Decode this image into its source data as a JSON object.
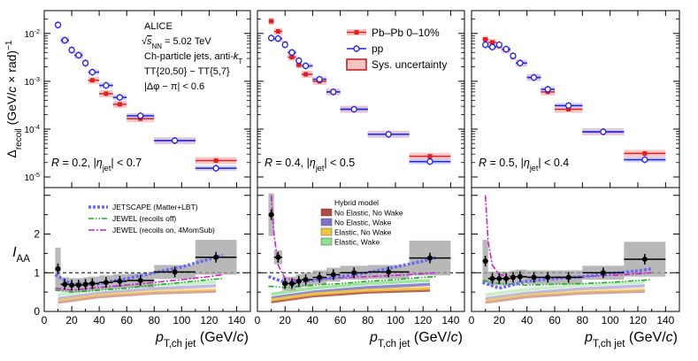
{
  "chart_data": [
    {
      "type": "scatter",
      "panel": "R=0.2 spectrum",
      "ylabel": "Δrecoil (GeV/c × rad)^-1",
      "yscale": "log",
      "ylim": [
        6e-06,
        0.03
      ],
      "xlim": [
        0,
        150
      ],
      "text": {
        "alice": "ALICE",
        "energy_pre": "√",
        "energy_s": "s",
        "energy_nn": "NN",
        "energy_post": " = 5.02 TeV",
        "jets_pre": "Ch-particle jets, anti-",
        "jets_k": "k",
        "jets_t": "T",
        "tt": "TT{20,50} − TT{5,7}",
        "dphi": "|Δφ − π| < 0.6",
        "r_label": "R = 0.2, |η",
        "r_sub": "jet",
        "r_post": "| < 0.7"
      },
      "series": [
        {
          "name": "Pb–Pb 0–10%",
          "x": [
            10,
            15,
            20,
            25,
            30,
            35,
            45,
            55,
            70,
            95,
            125
          ],
          "y": [
            0.015,
            0.0072,
            0.0045,
            0.0035,
            0.0024,
            0.00105,
            0.00055,
            0.00033,
            0.000165,
            5.75e-05,
            2.2e-05
          ]
        },
        {
          "name": "pp",
          "x": [
            10,
            15,
            20,
            25,
            30,
            35,
            45,
            55,
            70,
            95,
            125
          ],
          "y": [
            0.015,
            0.0072,
            0.0045,
            0.0035,
            0.0024,
            0.00155,
            0.00082,
            0.00046,
            0.00019,
            5.75e-05,
            1.52e-05
          ]
        }
      ]
    },
    {
      "type": "scatter",
      "panel": "R=0.4 spectrum",
      "yscale": "log",
      "text": {
        "r_label": "R = 0.4, |η",
        "r_sub": "jet",
        "r_post": "| < 0.5"
      },
      "series": [
        {
          "name": "Pb–Pb 0–10%",
          "x": [
            10,
            15,
            20,
            25,
            30,
            35,
            45,
            55,
            70,
            95,
            125
          ],
          "y": [
            0.018,
            0.011,
            0.006,
            0.0032,
            0.0022,
            0.0014,
            0.001,
            0.0006,
            0.00026,
            7.8e-05,
            2.7e-05
          ]
        },
        {
          "name": "pp",
          "x": [
            10,
            15,
            20,
            25,
            30,
            35,
            45,
            55,
            70,
            95,
            125
          ],
          "y": [
            0.008,
            0.0078,
            0.0058,
            0.004,
            0.0027,
            0.0021,
            0.0011,
            0.0006,
            0.00026,
            7.8e-05,
            2.1e-05
          ]
        }
      ]
    },
    {
      "type": "scatter",
      "panel": "R=0.5 spectrum",
      "yscale": "log",
      "text": {
        "r_label": "R = 0.5, |η",
        "r_sub": "jet",
        "r_post": "| < 0.4"
      },
      "series": [
        {
          "name": "Pb–Pb 0–10%",
          "x": [
            10,
            15,
            20,
            25,
            30,
            35,
            45,
            55,
            70,
            95,
            125
          ],
          "y": [
            0.0075,
            0.0065,
            0.0055,
            0.0045,
            0.0033,
            0.0024,
            0.0012,
            0.0006,
            0.00026,
            8.8e-05,
            3.1e-05
          ]
        },
        {
          "name": "pp",
          "x": [
            10,
            15,
            20,
            25,
            30,
            35,
            45,
            55,
            70,
            95,
            125
          ],
          "y": [
            0.0058,
            0.0052,
            0.0058,
            0.0047,
            0.0034,
            0.0024,
            0.0012,
            0.00068,
            0.00031,
            8.8e-05,
            2.3e-05
          ]
        }
      ]
    },
    {
      "type": "line",
      "panel": "R=0.2 IAA",
      "ylabel": "IAA",
      "xlabel": "pT,ch jet (GeV/c)",
      "ylim": [
        0,
        3.2
      ],
      "xlim": [
        0,
        150
      ],
      "data": {
        "x": [
          10,
          15,
          20,
          25,
          30,
          35,
          45,
          55,
          70,
          95,
          125
        ],
        "y": [
          1.1,
          0.7,
          0.68,
          0.68,
          0.7,
          0.72,
          0.75,
          0.78,
          0.8,
          1.02,
          1.4
        ]
      },
      "models": {
        "jetscape": {
          "x": [
            8,
            20,
            40,
            60,
            80,
            100,
            120,
            130
          ],
          "y": [
            0.95,
            0.7,
            0.72,
            0.85,
            1.0,
            1.15,
            1.35,
            1.45
          ]
        },
        "jewel_off": {
          "x": [
            8,
            20,
            40,
            60,
            80,
            100,
            120,
            130
          ],
          "y": [
            0.55,
            0.5,
            0.55,
            0.6,
            0.68,
            0.75,
            0.82,
            0.85
          ]
        },
        "jewel_on": {
          "x": [
            8,
            20,
            40,
            60,
            80,
            100,
            120,
            130
          ],
          "y": [
            0.6,
            0.55,
            0.62,
            0.68,
            0.75,
            0.82,
            0.9,
            0.95
          ]
        }
      }
    },
    {
      "type": "line",
      "panel": "R=0.4 IAA",
      "xlabel": "pT,ch jet (GeV/c)",
      "hybrid_title": "Hybrid model",
      "hybrid": [
        {
          "name": "No Elastic, No Wake",
          "color": "#b04a3c",
          "x": [
            10,
            40,
            80,
            125
          ],
          "y": [
            0.25,
            0.4,
            0.5,
            0.55
          ]
        },
        {
          "name": "No Elastic, Wake",
          "color": "#7b74c9",
          "x": [
            10,
            40,
            80,
            125
          ],
          "y": [
            0.35,
            0.5,
            0.62,
            0.7
          ]
        },
        {
          "name": "Elastic, No Wake",
          "color": "#f0c43c",
          "x": [
            10,
            40,
            80,
            125
          ],
          "y": [
            0.3,
            0.45,
            0.55,
            0.6
          ]
        },
        {
          "name": "Elastic, Wake",
          "color": "#8fe08f",
          "x": [
            10,
            40,
            80,
            125
          ],
          "y": [
            0.45,
            0.6,
            0.72,
            0.8
          ]
        }
      ],
      "data": {
        "x": [
          10,
          15,
          20,
          25,
          30,
          35,
          45,
          55,
          70,
          95,
          125
        ],
        "y": [
          2.5,
          1.4,
          0.72,
          0.72,
          0.78,
          0.82,
          0.88,
          0.95,
          1.0,
          1.02,
          1.38
        ]
      },
      "models": {
        "jetscape": {
          "x": [
            8,
            20,
            40,
            60,
            80,
            100,
            120,
            130
          ],
          "y": [
            0.9,
            0.75,
            0.8,
            0.9,
            1.0,
            1.15,
            1.3,
            1.4
          ]
        },
        "jewel_off": {
          "x": [
            8,
            20,
            40,
            60,
            80,
            100,
            120,
            130
          ],
          "y": [
            0.65,
            0.62,
            0.68,
            0.72,
            0.78,
            0.82,
            0.88,
            0.9
          ]
        },
        "jewel_on": {
          "x": [
            10,
            12,
            15,
            20,
            30,
            50,
            80,
            110,
            130
          ],
          "y": [
            3.0,
            2.0,
            1.2,
            0.85,
            0.8,
            0.85,
            0.9,
            0.95,
            1.0
          ]
        }
      }
    },
    {
      "type": "line",
      "panel": "R=0.5 IAA",
      "xlabel": "pT,ch jet (GeV/c)",
      "data": {
        "x": [
          10,
          15,
          20,
          25,
          30,
          35,
          45,
          55,
          70,
          95,
          125
        ],
        "y": [
          1.3,
          0.85,
          0.85,
          0.85,
          0.88,
          0.9,
          0.88,
          0.88,
          0.88,
          1.0,
          1.35
        ]
      },
      "models": {
        "jetscape": {
          "x": [
            8,
            20,
            40,
            60,
            80,
            100,
            120,
            130
          ],
          "y": [
            0.75,
            0.6,
            0.78,
            0.85,
            0.9,
            0.98,
            1.05,
            1.1
          ]
        },
        "jewel_off": {
          "x": [
            8,
            20,
            40,
            60,
            80,
            100,
            120,
            130
          ],
          "y": [
            0.8,
            0.72,
            0.68,
            0.7,
            0.72,
            0.75,
            0.8,
            0.82
          ]
        },
        "jewel_on": {
          "x": [
            10,
            12,
            15,
            20,
            30,
            50,
            80,
            110,
            130
          ],
          "y": [
            3.0,
            1.8,
            1.2,
            0.95,
            0.9,
            0.88,
            0.9,
            0.95,
            1.0
          ]
        }
      }
    }
  ],
  "legend": {
    "pbpb": "Pb–Pb 0–10%",
    "pp": "pp",
    "sys": "Sys. uncertainty",
    "jetscape": "JETSCAPE (Matter+LBT)",
    "jewel_off": "JEWEL (recoils off)",
    "jewel_on": "JEWEL (recoils on, 4MomSub)"
  },
  "axes": {
    "ylabel_top": "Δ",
    "ylabel_sub": "recoil",
    "ylabel_post": " (GeV/",
    "ylabel_c": "c",
    "ylabel_post2": " × rad)",
    "ylabel_sup": "−1",
    "ylabel_bottom": "I",
    "ylabel_bottom_sub": "AA",
    "xlabel_p": "p",
    "xlabel_sub": "T,ch jet",
    "xlabel_post": " (GeV/",
    "xlabel_c": "c",
    "xlabel_end": ")",
    "xticks": [
      0,
      20,
      40,
      60,
      80,
      100,
      120,
      140
    ],
    "yticks_top": [
      "10⁻²",
      "10⁻³",
      "10⁻⁴",
      "10⁻⁵"
    ],
    "yticks_bottom": [
      1,
      2
    ]
  },
  "colors": {
    "pbpb": "#e02020",
    "pp": "#2020e0",
    "jetscape": "#6a6af0",
    "jewel_off": "#22aa22",
    "jewel_on": "#cc22cc"
  }
}
